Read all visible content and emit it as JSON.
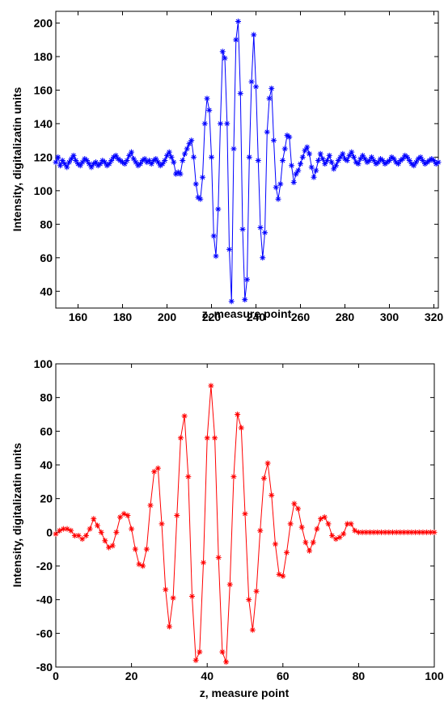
{
  "chart_data": [
    {
      "type": "line",
      "xlabel": "z, measure point",
      "ylabel": "Intensity, digitalizatin units",
      "xlim": [
        150,
        322
      ],
      "ylim": [
        30,
        207
      ],
      "xticks": [
        160,
        180,
        200,
        220,
        240,
        260,
        280,
        300,
        320
      ],
      "yticks": [
        40,
        60,
        80,
        100,
        120,
        140,
        160,
        180,
        200
      ],
      "grid": false,
      "marker": "asterisk",
      "color": "#0000ff",
      "series": [
        {
          "x": [
            150,
            151,
            152,
            153,
            154,
            155,
            156,
            157,
            158,
            159,
            160,
            161,
            162,
            163,
            164,
            165,
            166,
            167,
            168,
            169,
            170,
            171,
            172,
            173,
            174,
            175,
            176,
            177,
            178,
            179,
            180,
            181,
            182,
            183,
            184,
            185,
            186,
            187,
            188,
            189,
            190,
            191,
            192,
            193,
            194,
            195,
            196,
            197,
            198,
            199,
            200,
            201,
            202,
            203,
            204,
            205,
            206,
            207,
            208,
            209,
            210,
            211,
            212,
            213,
            214,
            215,
            216,
            217,
            218,
            219,
            220,
            221,
            222,
            223,
            224,
            225,
            226,
            227,
            228,
            229,
            230,
            231,
            232,
            233,
            234,
            235,
            236,
            237,
            238,
            239,
            240,
            241,
            242,
            243,
            244,
            245,
            246,
            247,
            248,
            249,
            250,
            251,
            252,
            253,
            254,
            255,
            256,
            257,
            258,
            259,
            260,
            261,
            262,
            263,
            264,
            265,
            266,
            267,
            268,
            269,
            270,
            271,
            272,
            273,
            274,
            275,
            276,
            277,
            278,
            279,
            280,
            281,
            282,
            283,
            284,
            285,
            286,
            287,
            288,
            289,
            290,
            291,
            292,
            293,
            294,
            295,
            296,
            297,
            298,
            299,
            300,
            301,
            302,
            303,
            304,
            305,
            306,
            307,
            308,
            309,
            310,
            311,
            312,
            313,
            314,
            315,
            316,
            317,
            318,
            319,
            320,
            321,
            322
          ],
          "y": [
            117,
            120,
            115,
            118,
            116,
            114,
            117,
            119,
            121,
            118,
            116,
            115,
            117,
            119,
            118,
            116,
            114,
            116,
            117,
            115,
            116,
            118,
            117,
            115,
            116,
            118,
            120,
            121,
            119,
            118,
            117,
            116,
            118,
            121,
            123,
            119,
            117,
            115,
            116,
            118,
            119,
            117,
            118,
            116,
            118,
            119,
            117,
            115,
            116,
            118,
            121,
            123,
            120,
            117,
            110,
            111,
            110,
            118,
            122,
            125,
            128,
            130,
            120,
            104,
            96,
            95,
            108,
            140,
            155,
            148,
            120,
            73,
            61,
            89,
            140,
            183,
            179,
            140,
            65,
            34,
            125,
            190,
            201,
            158,
            77,
            35,
            47,
            120,
            165,
            193,
            162,
            118,
            78,
            60,
            75,
            135,
            155,
            161,
            130,
            102,
            95,
            104,
            118,
            125,
            133,
            132,
            115,
            105,
            110,
            112,
            116,
            120,
            124,
            126,
            122,
            114,
            108,
            112,
            118,
            122,
            119,
            116,
            118,
            121,
            117,
            113,
            115,
            118,
            120,
            122,
            119,
            118,
            121,
            123,
            120,
            117,
            116,
            119,
            121,
            119,
            117,
            118,
            120,
            118,
            116,
            117,
            119,
            118,
            116,
            117,
            118,
            120,
            119,
            117,
            116,
            118,
            119,
            121,
            120,
            118,
            116,
            115,
            117,
            119,
            120,
            118,
            116,
            117,
            118,
            119,
            118,
            116,
            117
          ]
        }
      ]
    },
    {
      "type": "line",
      "xlabel": "z, measure point",
      "ylabel": "Intensity, digitalizatin units",
      "xlim": [
        0,
        100
      ],
      "ylim": [
        -80,
        100
      ],
      "xticks": [
        0,
        20,
        40,
        60,
        80,
        100
      ],
      "yticks": [
        -80,
        -60,
        -40,
        -20,
        0,
        20,
        40,
        60,
        80,
        100
      ],
      "grid": false,
      "marker": "asterisk",
      "color": "#ff0000",
      "series": [
        {
          "x": [
            0,
            1,
            2,
            3,
            4,
            5,
            6,
            7,
            8,
            9,
            10,
            11,
            12,
            13,
            14,
            15,
            16,
            17,
            18,
            19,
            20,
            21,
            22,
            23,
            24,
            25,
            26,
            27,
            28,
            29,
            30,
            31,
            32,
            33,
            34,
            35,
            36,
            37,
            38,
            39,
            40,
            41,
            42,
            43,
            44,
            45,
            46,
            47,
            48,
            49,
            50,
            51,
            52,
            53,
            54,
            55,
            56,
            57,
            58,
            59,
            60,
            61,
            62,
            63,
            64,
            65,
            66,
            67,
            68,
            69,
            70,
            71,
            72,
            73,
            74,
            75,
            76,
            77,
            78,
            79,
            80,
            81,
            82,
            83,
            84,
            85,
            86,
            87,
            88,
            89,
            90,
            91,
            92,
            93,
            94,
            95,
            96,
            97,
            98,
            99,
            100
          ],
          "y": [
            -1,
            1,
            2,
            2,
            1,
            -2,
            -2,
            -4,
            -2,
            2,
            8,
            4,
            0,
            -5,
            -9,
            -8,
            0,
            9,
            11,
            10,
            2,
            -10,
            -19,
            -20,
            -10,
            16,
            36,
            38,
            5,
            -34,
            -56,
            -39,
            10,
            56,
            69,
            33,
            -38,
            -76,
            -71,
            -18,
            56,
            87,
            56,
            -15,
            -71,
            -77,
            -31,
            33,
            70,
            62,
            11,
            -40,
            -58,
            -35,
            1,
            32,
            41,
            22,
            -7,
            -25,
            -26,
            -12,
            5,
            17,
            14,
            3,
            -6,
            -11,
            -6,
            2,
            8,
            9,
            5,
            -2,
            -4,
            -3,
            -1,
            5,
            5,
            1,
            0,
            0,
            0,
            0,
            0,
            0,
            0,
            0,
            0,
            0,
            0,
            0,
            0,
            0,
            0,
            0,
            0,
            0,
            0,
            0,
            0
          ]
        }
      ]
    }
  ]
}
